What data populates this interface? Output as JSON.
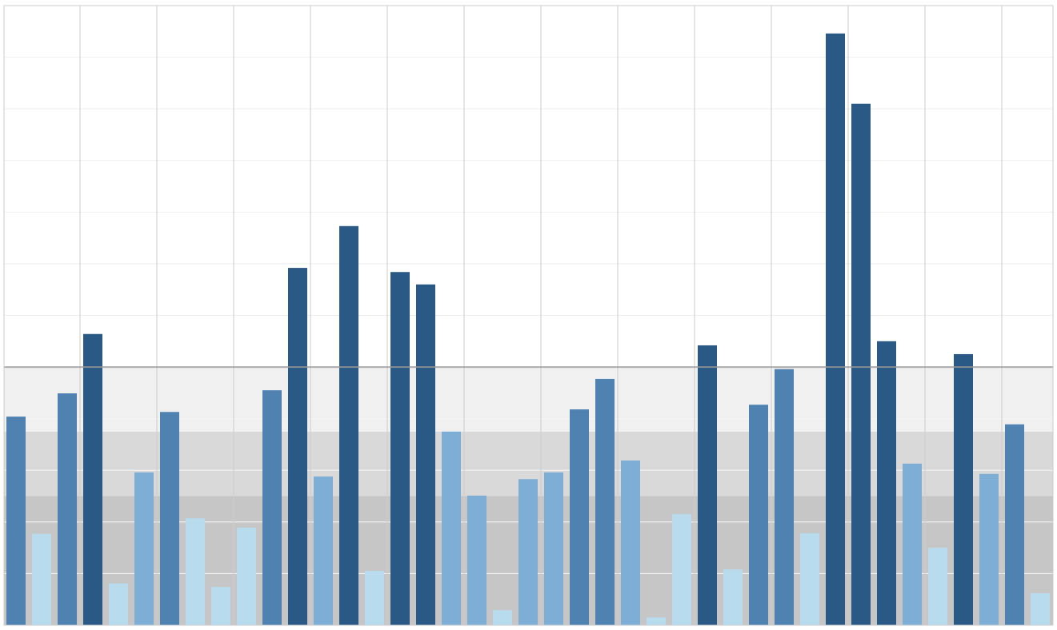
{
  "chart_data": {
    "type": "bar",
    "categories": [
      null,
      null,
      null,
      null,
      null,
      null,
      null,
      null,
      null,
      null,
      null,
      null,
      null,
      null,
      null,
      null,
      null,
      null,
      null,
      null,
      null,
      null,
      null,
      null,
      null,
      null,
      null,
      null,
      null,
      null,
      null,
      null,
      null,
      null,
      null,
      null,
      null,
      null,
      null,
      null,
      null
    ],
    "values": [
      4.04,
      1.77,
      4.49,
      5.64,
      0.81,
      2.96,
      4.13,
      2.07,
      0.74,
      1.89,
      4.55,
      6.92,
      2.88,
      7.73,
      1.05,
      6.84,
      6.6,
      3.75,
      2.51,
      0.29,
      2.83,
      2.96,
      4.18,
      4.77,
      3.19,
      0.15,
      2.15,
      5.42,
      1.08,
      4.27,
      4.96,
      1.78,
      11.46,
      10.1,
      5.5,
      3.13,
      1.5,
      5.25,
      2.93,
      3.89,
      0.62
    ],
    "color_scale": [
      {
        "max": 2.5,
        "color": "#b8dcee"
      },
      {
        "max": 3.75,
        "color": "#7eaed5"
      },
      {
        "max": 5,
        "color": "#4f81b1"
      },
      {
        "max": 12,
        "color": "#2b5986"
      }
    ],
    "bands": [
      {
        "from": 0,
        "to": 2.5,
        "color": "#c6c6c6"
      },
      {
        "from": 2.5,
        "to": 3.75,
        "color": "#d9d9d9"
      },
      {
        "from": 3.75,
        "to": 5,
        "color": "#f0f0f0"
      }
    ],
    "reference_line": 5,
    "ylim": [
      0,
      12
    ],
    "yticks": [
      0,
      1,
      2,
      3,
      4,
      5,
      6,
      7,
      8,
      9,
      10,
      11,
      12
    ],
    "grid": true
  }
}
